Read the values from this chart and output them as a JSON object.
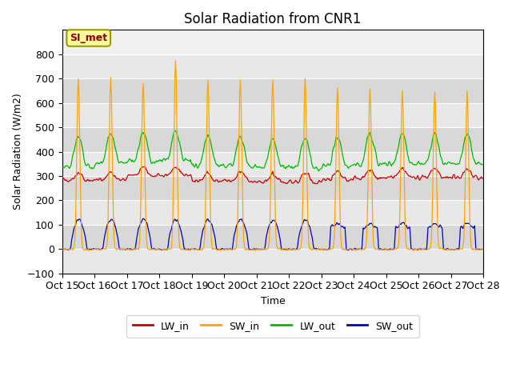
{
  "title": "Solar Radiation from CNR1",
  "ylabel": "Solar Radiation (W/m2)",
  "xlabel": "Time",
  "annotation": "SI_met",
  "ylim": [
    -100,
    900
  ],
  "yticks": [
    -100,
    0,
    100,
    200,
    300,
    400,
    500,
    600,
    700,
    800
  ],
  "n_days": 13,
  "colors": {
    "LW_in": "#cc0000",
    "SW_in": "#ffa500",
    "LW_out": "#00bb00",
    "SW_out": "#0000cc"
  },
  "background_color": "#e8e8e8",
  "plot_bg": "#f0f0f0",
  "title_fontsize": 12,
  "axis_label_fontsize": 9,
  "tick_fontsize": 9,
  "figsize": [
    6.4,
    4.8
  ],
  "dpi": 100
}
